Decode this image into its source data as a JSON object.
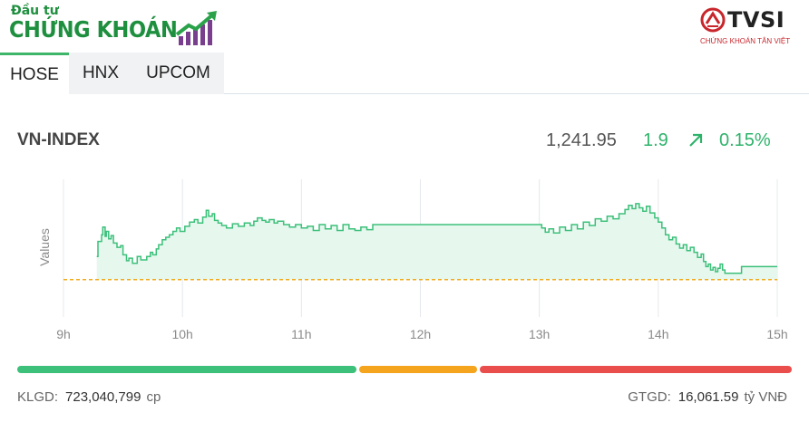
{
  "brand": {
    "top_text": "Đầu tư",
    "main_text": "CHỨNG KHOÁN",
    "accent": "#1e8f3e"
  },
  "partner": {
    "name": "TVSI",
    "subtitle": "CHỨNG KHOÁN TÂN VIỆT",
    "accent": "#c8262c"
  },
  "tabs": [
    {
      "label": "HOSE",
      "active": true
    },
    {
      "label": "HNX",
      "active": false
    },
    {
      "label": "UPCOM",
      "active": false
    }
  ],
  "index": {
    "name": "VN-INDEX",
    "value": "1,241.95",
    "change": "1.9",
    "change_pct": "0.15%",
    "direction_icon": "arrow-up-right-icon",
    "up_color": "#2fb36b"
  },
  "chart_data": {
    "type": "area",
    "ylabel": "Values",
    "xlabel": "",
    "x_ticks": [
      "9h",
      "10h",
      "11h",
      "12h",
      "13h",
      "14h",
      "15h"
    ],
    "x_tick_hours": [
      9,
      10,
      11,
      12,
      13,
      14,
      15
    ],
    "xlim": [
      9,
      15
    ],
    "ylim": [
      1235.6,
      1252.0
    ],
    "reference_value": 1240.05,
    "reference_style": "dashed",
    "reference_color": "#f0a818",
    "line_color": "#3cc07a",
    "fill_color": "#e6f7ee",
    "grid": "vertical",
    "series": [
      {
        "x": [
          9.28,
          9.29,
          9.32,
          9.33,
          9.35,
          9.36,
          9.38,
          9.4,
          9.42,
          9.45,
          9.48,
          9.5,
          9.53,
          9.55,
          9.58,
          9.62,
          9.65,
          9.7,
          9.73,
          9.75,
          9.78,
          9.8,
          9.83,
          9.86,
          9.89,
          9.92,
          9.95,
          9.98,
          10.02,
          10.06,
          10.1,
          10.13,
          10.17,
          10.2,
          10.22,
          10.25,
          10.27,
          10.3,
          10.33,
          10.37,
          10.42,
          10.47,
          10.52,
          10.57,
          10.6,
          10.63,
          10.67,
          10.7,
          10.73,
          10.77,
          10.8,
          10.85,
          10.9,
          10.95,
          11.0,
          11.05,
          11.1,
          11.15,
          11.2,
          11.25,
          11.3,
          11.35,
          11.4,
          11.45,
          11.5,
          11.55,
          11.6,
          11.7,
          11.8,
          11.9,
          12.0,
          12.1,
          12.2,
          12.3,
          12.4,
          12.5,
          12.6,
          12.7,
          12.8,
          12.9,
          13.0,
          13.02,
          13.05,
          13.08,
          13.12,
          13.17,
          13.22,
          13.27,
          13.32,
          13.37,
          13.42,
          13.47,
          13.52,
          13.57,
          13.62,
          13.67,
          13.72,
          13.75,
          13.78,
          13.81,
          13.84,
          13.87,
          13.9,
          13.93,
          13.97,
          14.0,
          14.03,
          14.06,
          14.09,
          14.12,
          14.15,
          14.18,
          14.21,
          14.24,
          14.27,
          14.3,
          14.33,
          14.36,
          14.38,
          14.4,
          14.42,
          14.44,
          14.46,
          14.48,
          14.5,
          14.52,
          14.54,
          14.56,
          14.58,
          14.62,
          14.66,
          14.7,
          14.74,
          14.78,
          14.82,
          14.86,
          14.92,
          14.98
        ],
        "values": [
          1242.8,
          1244.6,
          1245.4,
          1246.3,
          1245.2,
          1245.8,
          1244.9,
          1245.3,
          1244.4,
          1243.9,
          1244.1,
          1243.0,
          1242.3,
          1242.6,
          1242.0,
          1242.8,
          1242.4,
          1242.8,
          1243.3,
          1243.0,
          1243.7,
          1244.2,
          1244.8,
          1245.1,
          1245.4,
          1245.8,
          1246.2,
          1245.8,
          1246.4,
          1246.9,
          1247.2,
          1246.8,
          1247.5,
          1248.3,
          1247.6,
          1247.9,
          1247.1,
          1246.8,
          1246.5,
          1246.2,
          1246.7,
          1246.4,
          1246.8,
          1246.5,
          1247.0,
          1247.4,
          1247.1,
          1246.9,
          1247.2,
          1246.8,
          1247.0,
          1246.6,
          1246.3,
          1246.6,
          1246.2,
          1246.4,
          1245.9,
          1246.6,
          1246.1,
          1246.5,
          1245.9,
          1246.6,
          1246.1,
          1245.9,
          1246.3,
          1246.0,
          1246.6,
          1246.6,
          1246.6,
          1246.6,
          1246.6,
          1246.6,
          1246.6,
          1246.6,
          1246.6,
          1246.6,
          1246.6,
          1246.6,
          1246.6,
          1246.6,
          1246.6,
          1246.2,
          1245.7,
          1246.1,
          1245.6,
          1246.3,
          1245.9,
          1246.6,
          1246.1,
          1246.9,
          1246.5,
          1247.3,
          1247.0,
          1247.6,
          1247.3,
          1247.9,
          1248.4,
          1248.9,
          1248.5,
          1249.1,
          1248.6,
          1248.2,
          1248.8,
          1248.0,
          1247.4,
          1246.9,
          1246.2,
          1245.4,
          1244.8,
          1245.1,
          1244.3,
          1243.8,
          1244.2,
          1243.5,
          1243.9,
          1243.3,
          1242.7,
          1243.1,
          1242.2,
          1241.6,
          1241.9,
          1241.2,
          1241.5,
          1241.0,
          1241.4,
          1241.9,
          1241.2,
          1240.8,
          1240.8,
          1240.8,
          1240.8,
          1241.6,
          1241.6,
          1241.6,
          1241.6,
          1241.6,
          1241.6,
          1241.6
        ]
      }
    ]
  },
  "session_bar": [
    {
      "share": 0.44,
      "color": "#3cc07a"
    },
    {
      "share": 0.155,
      "color": "#f5a51d"
    },
    {
      "share": 0.405,
      "color": "#ea4e4c"
    }
  ],
  "footer": {
    "klgd_label": "KLGD:",
    "klgd_value": "723,040,799",
    "klgd_unit": "cp",
    "gtgd_label": "GTGD:",
    "gtgd_value": "16,061.59",
    "gtgd_unit": "tỷ VNĐ"
  }
}
